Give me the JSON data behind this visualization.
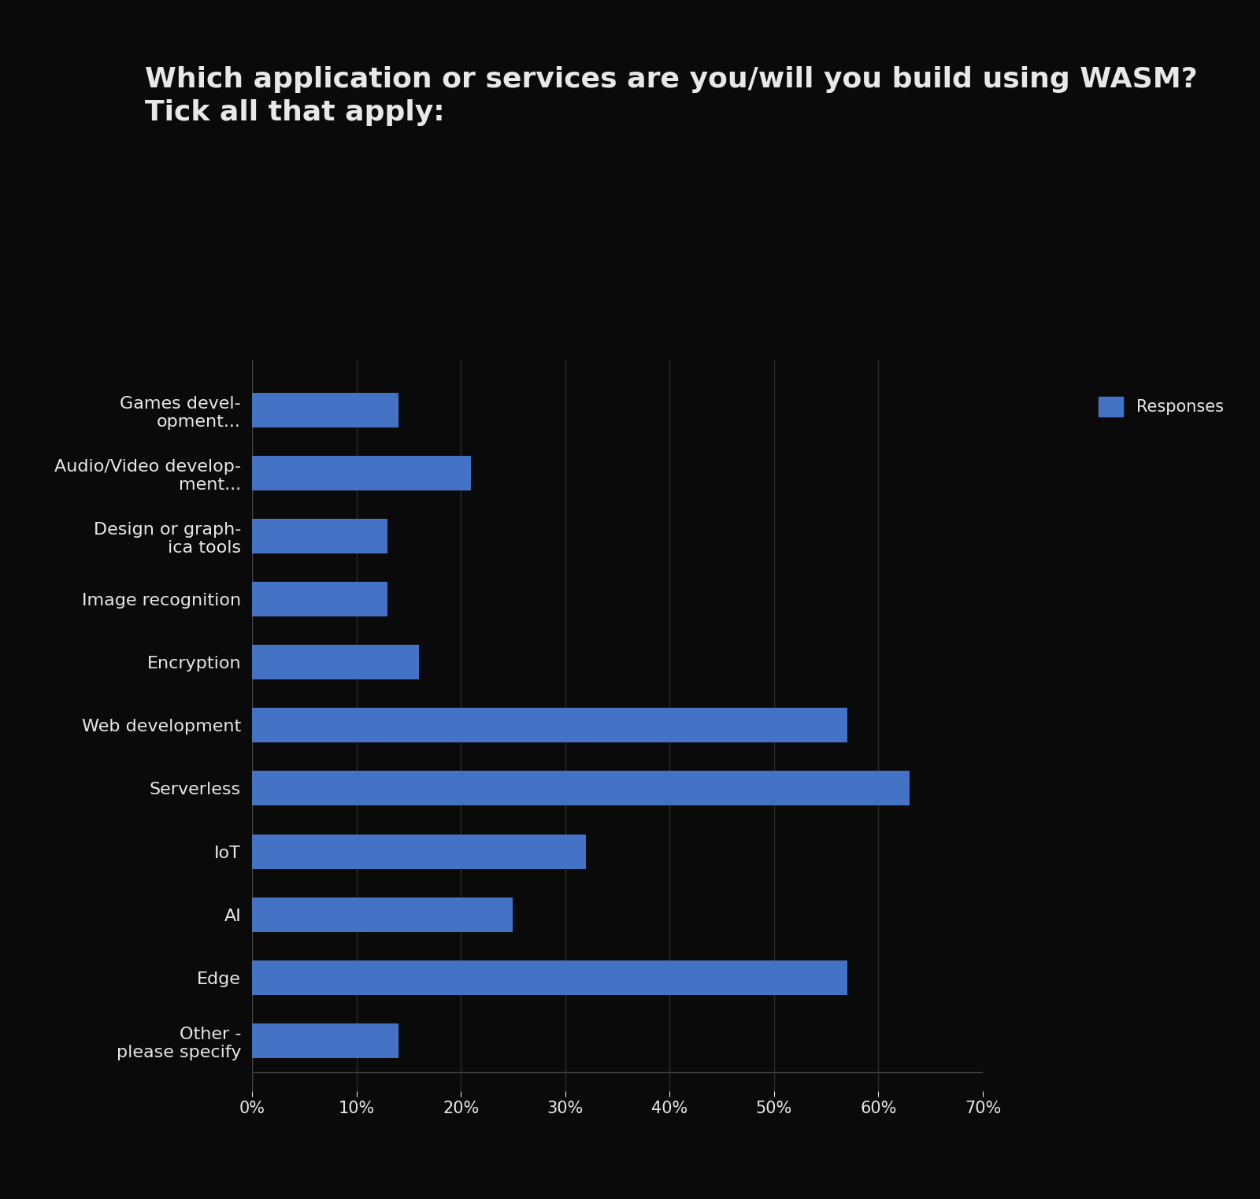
{
  "title": "Which application or services are you/will you build using WASM?\nTick all that apply:",
  "categories": [
    "Other -\nplease specify",
    "Edge",
    "AI",
    "IoT",
    "Serverless",
    "Web development",
    "Encryption",
    "Image recognition",
    "Design or graph-\nica tools",
    "Audio/Video develop-\nment...",
    "Games devel-\nopment..."
  ],
  "values": [
    14,
    57,
    25,
    32,
    63,
    57,
    16,
    13,
    13,
    21,
    14
  ],
  "bar_color": "#4472C4",
  "legend_label": "Responses",
  "legend_color": "#4472C4",
  "xlim": [
    0,
    70
  ],
  "xtick_values": [
    0,
    10,
    20,
    30,
    40,
    50,
    60,
    70
  ],
  "xtick_labels": [
    "0%",
    "10%",
    "20%",
    "30%",
    "40%",
    "50%",
    "60%",
    "70%"
  ],
  "background_color": "#0a0a0a",
  "text_color": "#e8e8e8",
  "grid_color": "#2a2a2a",
  "title_fontsize": 26,
  "tick_fontsize": 15,
  "label_fontsize": 16
}
